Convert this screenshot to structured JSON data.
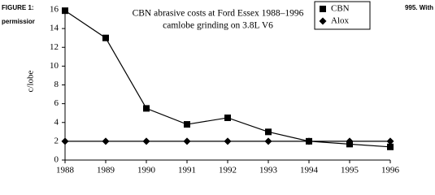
{
  "chart_data": {
    "type": "line",
    "title": [
      "CBN abrasive costs at Ford Essex 1988–1996",
      "camlobe grinding on 3.8L V6"
    ],
    "ylabel": "c/lobe",
    "annotations": [
      "FIGURE 1:",
      "permissior",
      "995. With"
    ],
    "x": [
      1988,
      1989,
      1990,
      1991,
      1992,
      1993,
      1994,
      1995,
      1996
    ],
    "series": [
      {
        "name": "CBN",
        "color": "#000000",
        "marker": "square",
        "values": [
          15.9,
          13.0,
          5.5,
          3.8,
          4.5,
          3.0,
          2.0,
          1.7,
          1.4
        ]
      },
      {
        "name": "Alox",
        "color": "#000000",
        "marker": "diamond",
        "values": [
          2,
          2,
          2,
          2,
          2,
          2,
          2,
          2,
          2
        ]
      }
    ],
    "xlim": [
      1988,
      1996
    ],
    "xticks": [
      1988,
      1989,
      1990,
      1991,
      1992,
      1993,
      1994,
      1995,
      1996
    ],
    "ylim": [
      0,
      16
    ],
    "yticks": [
      0,
      2,
      4,
      6,
      8,
      10,
      12,
      14,
      16
    ],
    "grid": false,
    "legend": "upper right"
  }
}
